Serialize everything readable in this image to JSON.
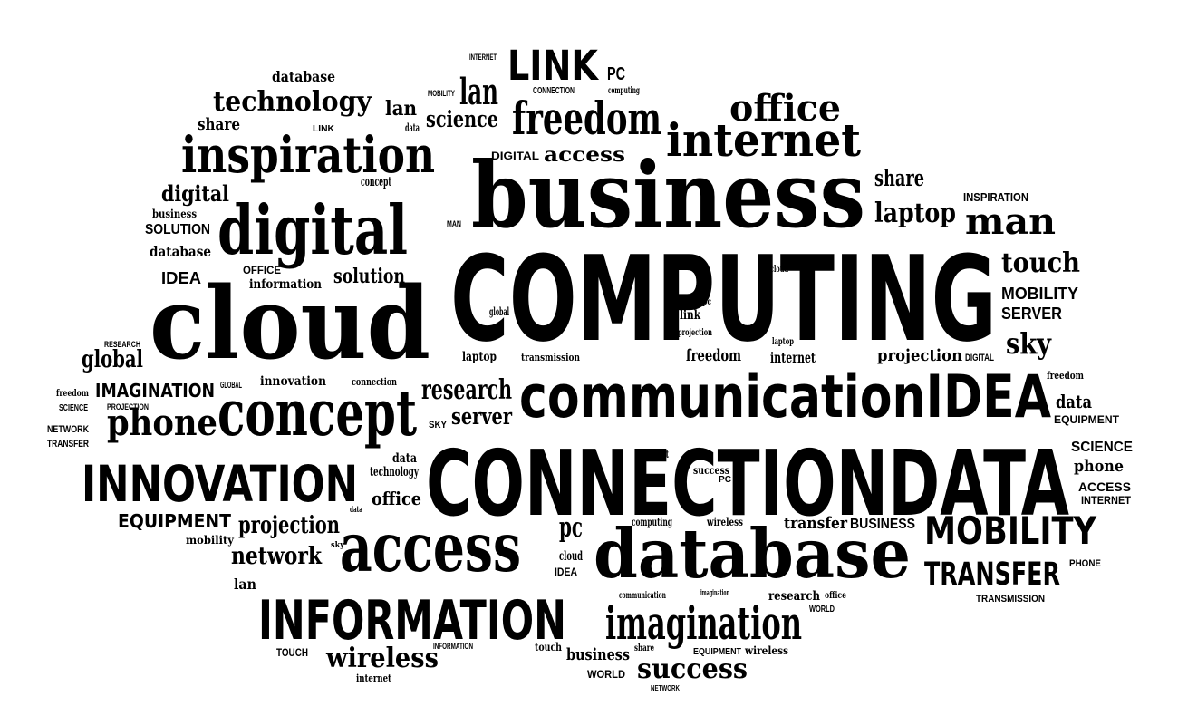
{
  "words": [
    "COMPUTING",
    "CONNECTIONDATA",
    "business",
    "communicationIDEA",
    "cloud",
    "database",
    "digital",
    "inspiration",
    "concept",
    "access",
    "INNOVATION",
    "INFORMATION",
    "imagination",
    "internet",
    "freedom",
    "office",
    "technology",
    "LINK",
    "lan",
    "science",
    "access",
    "man",
    "laptop",
    "share",
    "touch",
    "MOBILITY",
    "SERVER",
    "sky",
    "projection",
    "data",
    "EQUIPMENT",
    "SCIENCE",
    "phone",
    "ACCESS",
    "INTERNET",
    "MOBILITY",
    "TRANSFER",
    "PHONE",
    "TRANSMISSION",
    "transfer",
    "BUSINESS",
    "research",
    "server",
    "phone",
    "IMAGINATION",
    "global",
    "IDEA",
    "database",
    "SOLUTION",
    "business",
    "digital",
    "share",
    "database",
    "lan",
    "solution",
    "OFFICE",
    "information",
    "innovation",
    "connection",
    "projection",
    "network",
    "EQUIPMENT",
    "mobility",
    "lan",
    "TOUCH",
    "wireless",
    "internet",
    "office",
    "technology",
    "pc",
    "cloud",
    "IDEA",
    "computing",
    "wireless",
    "research",
    "touch",
    "business",
    "WORLD",
    "success",
    "EQUIPMENT",
    "wireless",
    "success",
    "laptop",
    "transmission",
    "freedom",
    "internet",
    "link",
    "PC",
    "DIGITAL",
    "freedom",
    "NETWORK",
    "TRANSFER",
    "freedom",
    "INSPIRATION",
    "concept",
    "data",
    "data",
    "sky",
    "INTERNET",
    "CONNECTION",
    "computing",
    "MOBILITY",
    "LINK",
    "data",
    "SKY",
    "global",
    "projection",
    "laptop",
    "cloud",
    "pc",
    "concept",
    "PC",
    "communication",
    "imagination",
    "office",
    "WORLD",
    "share",
    "INFORMATION",
    "NETWORK",
    "PROJECTION",
    "SCIENCE",
    "DIGITAL",
    "GLOBAL",
    "RESEARCH",
    "MAN"
  ]
}
